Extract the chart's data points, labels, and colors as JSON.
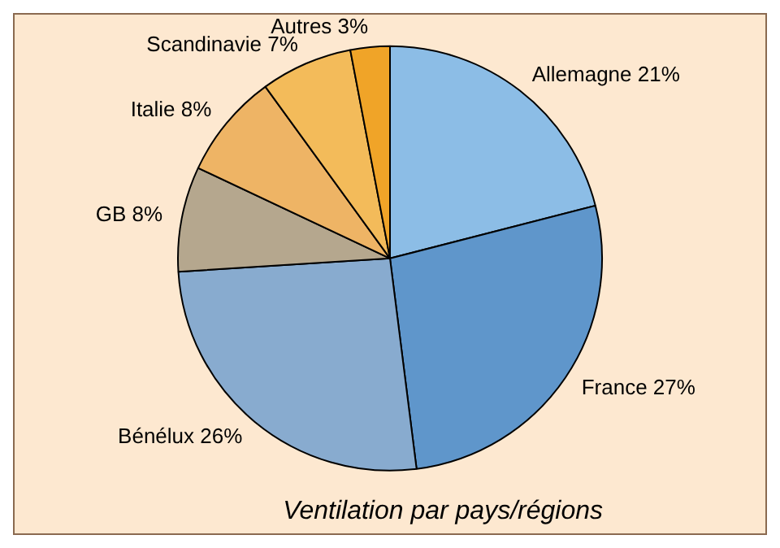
{
  "chart_data": {
    "type": "pie",
    "title": "Ventilation par pays/régions",
    "categories": [
      "Allemagne",
      "France",
      "Bénélux",
      "GB",
      "Italie",
      "Scandinavie",
      "Autres"
    ],
    "values": [
      21,
      27,
      26,
      8,
      8,
      7,
      3
    ],
    "value_labels": [
      "21%",
      "27%",
      "26%",
      "8%",
      "8%",
      "7%",
      "3%"
    ],
    "colors": [
      "#8cbde6",
      "#5f96cb",
      "#88abcf",
      "#b5a78e",
      "#eeb465",
      "#f3bb5a",
      "#f0a428"
    ],
    "legend": false
  }
}
